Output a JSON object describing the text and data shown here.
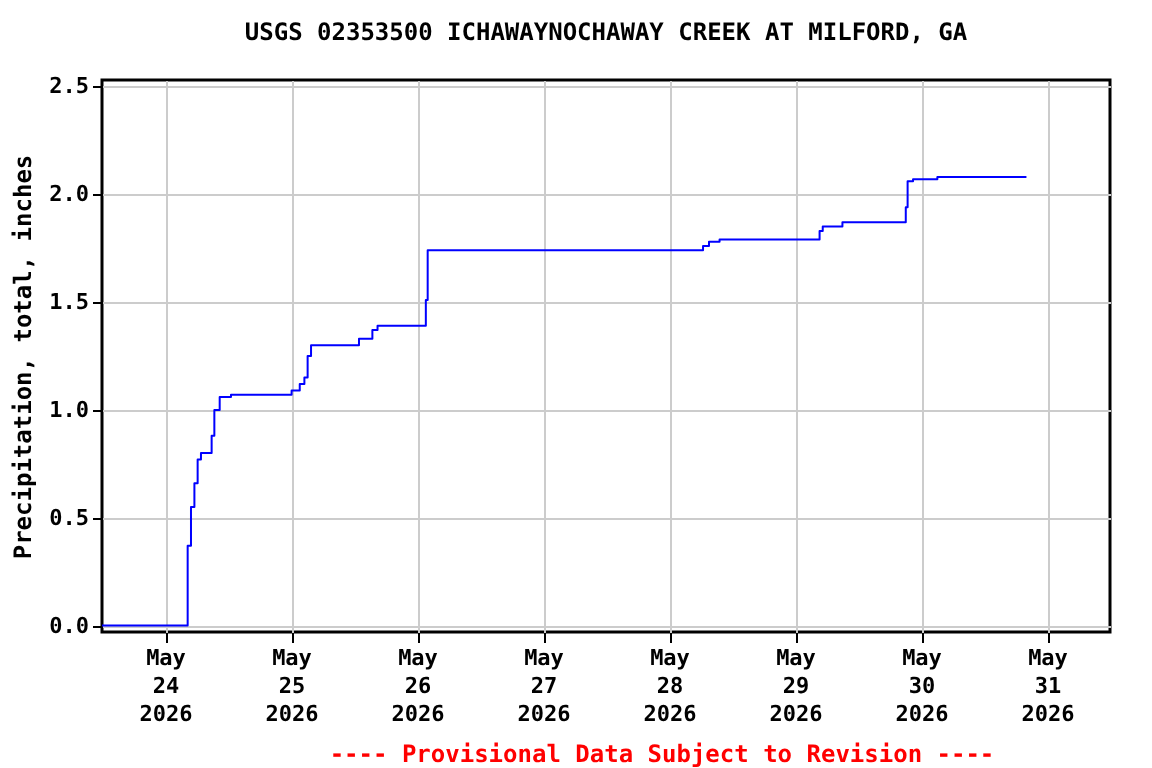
{
  "chart_data": {
    "type": "step",
    "title": "USGS 02353500 ICHAWAYNOCHAWAY CREEK AT MILFORD, GA",
    "ylabel": "Precipitation, total, inches",
    "annotations": [
      "---- Provisional Data Subject to Revision ----"
    ],
    "x": [
      "2026-05-23T12:00",
      "2026-05-24T04:19",
      "2026-05-24T04:57",
      "2026-05-24T05:36",
      "2026-05-24T06:13",
      "2026-05-24T06:51",
      "2026-05-24T08:53",
      "2026-05-24T09:24",
      "2026-05-24T10:25",
      "2026-05-24T12:34",
      "2026-05-25T00:07",
      "2026-05-25T01:40",
      "2026-05-25T02:33",
      "2026-05-25T03:10",
      "2026-05-25T03:49",
      "2026-05-25T12:57",
      "2026-05-25T15:30",
      "2026-05-25T16:29",
      "2026-05-26T01:41",
      "2026-05-26T02:02",
      "2026-05-28T06:29",
      "2026-05-28T07:37",
      "2026-05-28T09:38",
      "2026-05-29T04:41",
      "2026-05-29T05:17",
      "2026-05-29T09:02",
      "2026-05-29T21:06",
      "2026-05-29T21:27",
      "2026-05-29T22:29",
      "2026-05-29T23:44",
      "2026-05-30T03:07",
      "2026-05-30T20:05"
    ],
    "series": [
      {
        "color": "#0000ff",
        "values": [
          0.0,
          0.37,
          0.55,
          0.66,
          0.77,
          0.8,
          0.88,
          1.0,
          1.06,
          1.07,
          1.09,
          1.12,
          1.15,
          1.25,
          1.3,
          1.33,
          1.37,
          1.39,
          1.51,
          1.74,
          1.76,
          1.78,
          1.79,
          1.83,
          1.85,
          1.87,
          1.94,
          2.06,
          2.07,
          2.07,
          2.08,
          2.08
        ]
      }
    ],
    "xlim": [
      "2026-05-23T12:00",
      "2026-05-31T12:00"
    ],
    "xticks": [
      {
        "value": "2026-05-24",
        "label": "May\n24\n2026"
      },
      {
        "value": "2026-05-25",
        "label": "May\n25\n2026"
      },
      {
        "value": "2026-05-26",
        "label": "May\n26\n2026"
      },
      {
        "value": "2026-05-27",
        "label": "May\n27\n2026"
      },
      {
        "value": "2026-05-28",
        "label": "May\n28\n2026"
      },
      {
        "value": "2026-05-29",
        "label": "May\n29\n2026"
      },
      {
        "value": "2026-05-30",
        "label": "May\n30\n2026"
      },
      {
        "value": "2026-05-31",
        "label": "May\n31\n2026"
      }
    ],
    "ylim": [
      -0.03,
      2.53
    ],
    "yticks": [
      {
        "value": 0,
        "label": "0.0"
      },
      {
        "value": 0.5,
        "label": "0.5"
      },
      {
        "value": 1,
        "label": "1.0"
      },
      {
        "value": 1.5,
        "label": "1.5"
      },
      {
        "value": 2,
        "label": "2.0"
      },
      {
        "value": 2.5,
        "label": "2.5"
      }
    ],
    "grid": true
  }
}
